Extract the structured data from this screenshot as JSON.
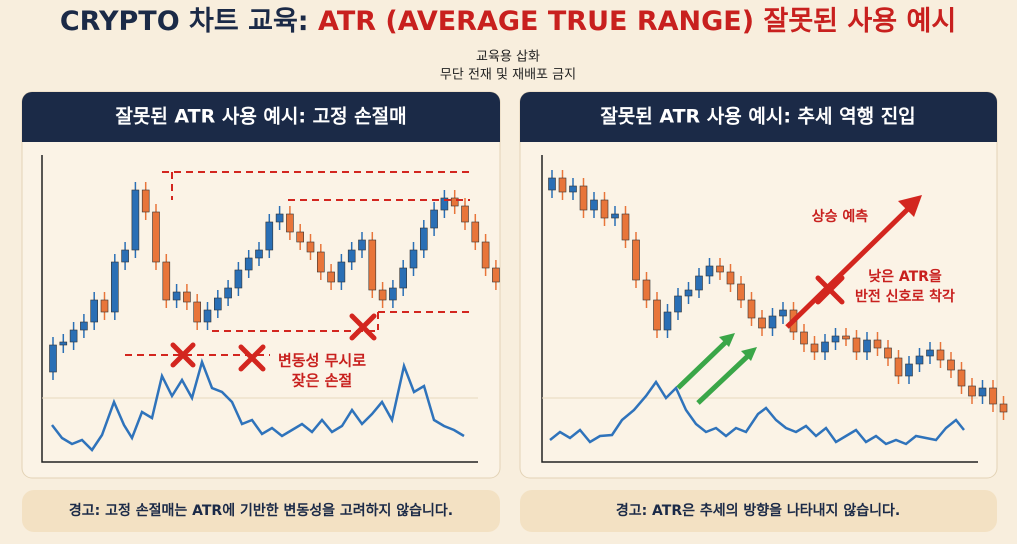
{
  "header": {
    "title_parts": [
      "CRYPTO 차트 교육: ",
      "ATR (AVERAGE TRUE RANGE)",
      " 잘못된 사용 예시"
    ],
    "subtitle_lines": [
      "교육용 삽화",
      "무단 전재 및 재배포 금지"
    ]
  },
  "panels": [
    {
      "title": "잘못된 ATR 사용 예시: 고정 손절매",
      "annotation_lines": [
        "변동성 무시로",
        "잦은 손절"
      ],
      "warning": "경고: 고정 손절매는 ATR에 기반한 변동성을 고려하지 않습니다."
    },
    {
      "title": "잘못된 ATR 사용 예시: 추세 역행 진입",
      "annotation_top": "상승 예측",
      "annotation_lines": [
        "낮은 ATR을",
        "반전 신호로 착각"
      ],
      "warning": "경고: ATR은 추세의 방향을 나타내지 않습니다."
    }
  ]
}
